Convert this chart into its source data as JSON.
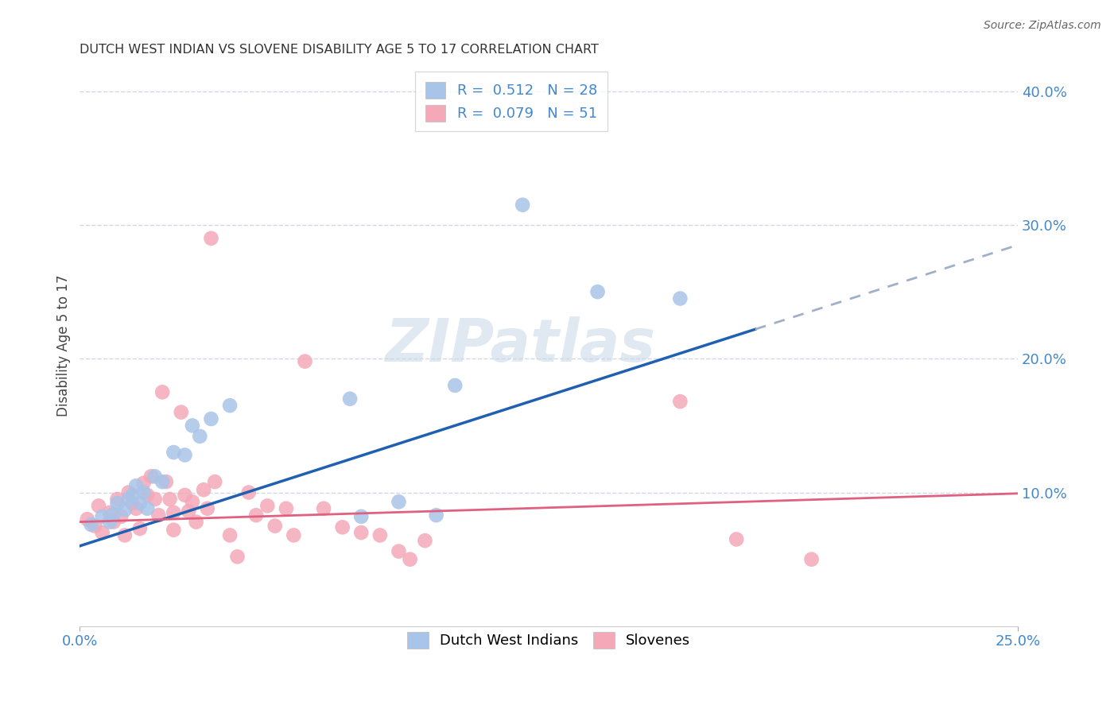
{
  "title": "DUTCH WEST INDIAN VS SLOVENE DISABILITY AGE 5 TO 17 CORRELATION CHART",
  "source": "Source: ZipAtlas.com",
  "ylabel": "Disability Age 5 to 17",
  "xlim": [
    0.0,
    0.25
  ],
  "ylim": [
    0.0,
    0.42
  ],
  "xlabel_ticks": [
    "0.0%",
    "25.0%"
  ],
  "xlabel_vals": [
    0.0,
    0.25
  ],
  "ylabel_ticks": [
    "10.0%",
    "20.0%",
    "30.0%",
    "40.0%"
  ],
  "ylabel_vals": [
    0.1,
    0.2,
    0.3,
    0.4
  ],
  "grid_vals": [
    0.1,
    0.2,
    0.3,
    0.4
  ],
  "dwi_color": "#a8c4e8",
  "slovene_color": "#f4a8b8",
  "dwi_line_color": "#2060b0",
  "slovene_line_color": "#e06080",
  "dashed_line_color": "#a0b0c8",
  "R_dwi": 0.512,
  "N_dwi": 28,
  "R_slo": 0.079,
  "N_slo": 51,
  "legend_label_dwi": "Dutch West Indians",
  "legend_label_slo": "Slovenes",
  "watermark": "ZIPatlas",
  "background_color": "#ffffff",
  "grid_color": "#d0d8e8",
  "dwi_line": {
    "x0": 0.0,
    "y0": 0.06,
    "x1": 0.18,
    "x1_dash": 0.25,
    "slope": 0.9
  },
  "slo_line": {
    "x0": 0.0,
    "y0": 0.078,
    "slope": 0.085
  },
  "dwi_scatter": [
    [
      0.003,
      0.076
    ],
    [
      0.006,
      0.082
    ],
    [
      0.008,
      0.078
    ],
    [
      0.009,
      0.084
    ],
    [
      0.01,
      0.092
    ],
    [
      0.012,
      0.087
    ],
    [
      0.013,
      0.095
    ],
    [
      0.014,
      0.098
    ],
    [
      0.015,
      0.105
    ],
    [
      0.016,
      0.092
    ],
    [
      0.017,
      0.1
    ],
    [
      0.018,
      0.088
    ],
    [
      0.02,
      0.112
    ],
    [
      0.022,
      0.108
    ],
    [
      0.025,
      0.13
    ],
    [
      0.028,
      0.128
    ],
    [
      0.03,
      0.15
    ],
    [
      0.032,
      0.142
    ],
    [
      0.035,
      0.155
    ],
    [
      0.04,
      0.165
    ],
    [
      0.072,
      0.17
    ],
    [
      0.075,
      0.082
    ],
    [
      0.085,
      0.093
    ],
    [
      0.095,
      0.083
    ],
    [
      0.1,
      0.18
    ],
    [
      0.118,
      0.315
    ],
    [
      0.138,
      0.25
    ],
    [
      0.16,
      0.245
    ]
  ],
  "slo_scatter": [
    [
      0.002,
      0.08
    ],
    [
      0.004,
      0.075
    ],
    [
      0.005,
      0.09
    ],
    [
      0.006,
      0.07
    ],
    [
      0.008,
      0.085
    ],
    [
      0.009,
      0.078
    ],
    [
      0.01,
      0.095
    ],
    [
      0.011,
      0.082
    ],
    [
      0.012,
      0.068
    ],
    [
      0.013,
      0.1
    ],
    [
      0.014,
      0.092
    ],
    [
      0.015,
      0.088
    ],
    [
      0.016,
      0.073
    ],
    [
      0.017,
      0.107
    ],
    [
      0.018,
      0.098
    ],
    [
      0.019,
      0.112
    ],
    [
      0.02,
      0.095
    ],
    [
      0.021,
      0.083
    ],
    [
      0.022,
      0.175
    ],
    [
      0.023,
      0.108
    ],
    [
      0.024,
      0.095
    ],
    [
      0.025,
      0.085
    ],
    [
      0.025,
      0.072
    ],
    [
      0.027,
      0.16
    ],
    [
      0.028,
      0.098
    ],
    [
      0.029,
      0.086
    ],
    [
      0.03,
      0.093
    ],
    [
      0.031,
      0.078
    ],
    [
      0.033,
      0.102
    ],
    [
      0.034,
      0.088
    ],
    [
      0.035,
      0.29
    ],
    [
      0.036,
      0.108
    ],
    [
      0.04,
      0.068
    ],
    [
      0.042,
      0.052
    ],
    [
      0.045,
      0.1
    ],
    [
      0.047,
      0.083
    ],
    [
      0.05,
      0.09
    ],
    [
      0.052,
      0.075
    ],
    [
      0.055,
      0.088
    ],
    [
      0.057,
      0.068
    ],
    [
      0.06,
      0.198
    ],
    [
      0.065,
      0.088
    ],
    [
      0.07,
      0.074
    ],
    [
      0.075,
      0.07
    ],
    [
      0.08,
      0.068
    ],
    [
      0.085,
      0.056
    ],
    [
      0.088,
      0.05
    ],
    [
      0.092,
      0.064
    ],
    [
      0.16,
      0.168
    ],
    [
      0.175,
      0.065
    ],
    [
      0.195,
      0.05
    ]
  ]
}
